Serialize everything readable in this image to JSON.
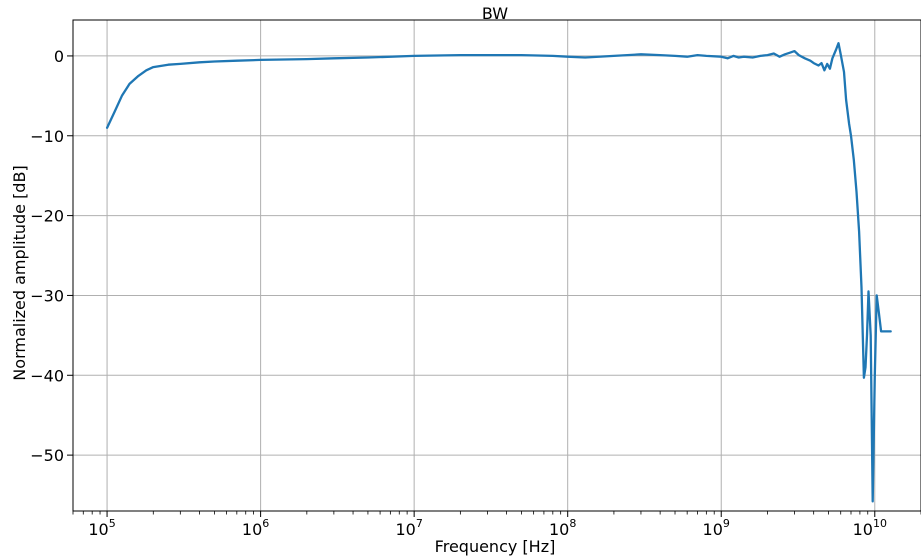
{
  "chart_data": {
    "type": "line",
    "title": "BW",
    "xlabel": "Frequency [Hz]",
    "ylabel": "Normalized amplitude [dB]",
    "x_scale": "log",
    "xlim": [
      60000,
      20000000000
    ],
    "ylim": [
      -57,
      4.5
    ],
    "grid": true,
    "legend": "none",
    "x_ticks": [
      {
        "value": 100000,
        "base": "10",
        "exp": "5"
      },
      {
        "value": 1000000,
        "base": "10",
        "exp": "6"
      },
      {
        "value": 10000000,
        "base": "10",
        "exp": "7"
      },
      {
        "value": 100000000,
        "base": "10",
        "exp": "8"
      },
      {
        "value": 1000000000,
        "base": "10",
        "exp": "9"
      },
      {
        "value": 10000000000,
        "base": "10",
        "exp": "10"
      }
    ],
    "y_ticks": [
      {
        "value": 0,
        "label": "0"
      },
      {
        "value": -10,
        "label": "−10"
      },
      {
        "value": -20,
        "label": "−20"
      },
      {
        "value": -30,
        "label": "−30"
      },
      {
        "value": -40,
        "label": "−40"
      },
      {
        "value": -50,
        "label": "−50"
      }
    ],
    "series": [
      {
        "color": "#1f77b4",
        "x": [
          100000,
          112000,
          125000,
          140000,
          160000,
          180000,
          200000,
          250000,
          300000,
          400000,
          500000,
          700000,
          1000000,
          2000000,
          3000000,
          5000000,
          10000000,
          20000000,
          30000000,
          50000000,
          80000000,
          100000000,
          130000000,
          200000000,
          300000000,
          400000000,
          500000000,
          600000000,
          700000000,
          800000000,
          1000000000,
          1100000000,
          1200000000,
          1300000000,
          1400000000,
          1600000000,
          1800000000,
          2000000000,
          2200000000,
          2400000000,
          2600000000,
          2800000000,
          3000000000,
          3200000000,
          3500000000,
          3800000000,
          4000000000,
          4300000000,
          4500000000,
          4700000000,
          4900000000,
          5100000000,
          5300000000,
          5600000000,
          5800000000,
          6000000000,
          6300000000,
          6500000000,
          6800000000,
          7000000000,
          7300000000,
          7600000000,
          7900000000,
          8200000000,
          8500000000,
          8700000000,
          8900000000,
          9100000000,
          9400000000,
          9700000000,
          10000000000,
          10300000000,
          10600000000,
          11000000000,
          11400000000,
          11800000000,
          12200000000,
          12700000000
        ],
        "y": [
          -9.0,
          -7.0,
          -5.0,
          -3.5,
          -2.5,
          -1.8,
          -1.4,
          -1.1,
          -1.0,
          -0.8,
          -0.7,
          -0.6,
          -0.5,
          -0.4,
          -0.3,
          -0.2,
          0.0,
          0.1,
          0.1,
          0.1,
          0.0,
          -0.1,
          -0.2,
          0.0,
          0.2,
          0.1,
          0.0,
          -0.1,
          0.1,
          0.0,
          -0.1,
          -0.3,
          0.0,
          -0.2,
          -0.1,
          -0.2,
          0.0,
          0.1,
          0.3,
          -0.1,
          0.2,
          0.4,
          0.6,
          0.1,
          -0.3,
          -0.6,
          -0.9,
          -1.2,
          -0.9,
          -1.8,
          -1.0,
          -1.6,
          -0.3,
          0.8,
          1.6,
          0.2,
          -2.0,
          -5.5,
          -8.5,
          -10.0,
          -13.0,
          -17.0,
          -22.0,
          -29.0,
          -40.3,
          -39.0,
          -35.0,
          -29.5,
          -35.0,
          -55.8,
          -40.0,
          -30.0,
          -32.0,
          -34.5,
          -34.5,
          -34.5,
          -34.5,
          -34.5
        ]
      }
    ]
  }
}
